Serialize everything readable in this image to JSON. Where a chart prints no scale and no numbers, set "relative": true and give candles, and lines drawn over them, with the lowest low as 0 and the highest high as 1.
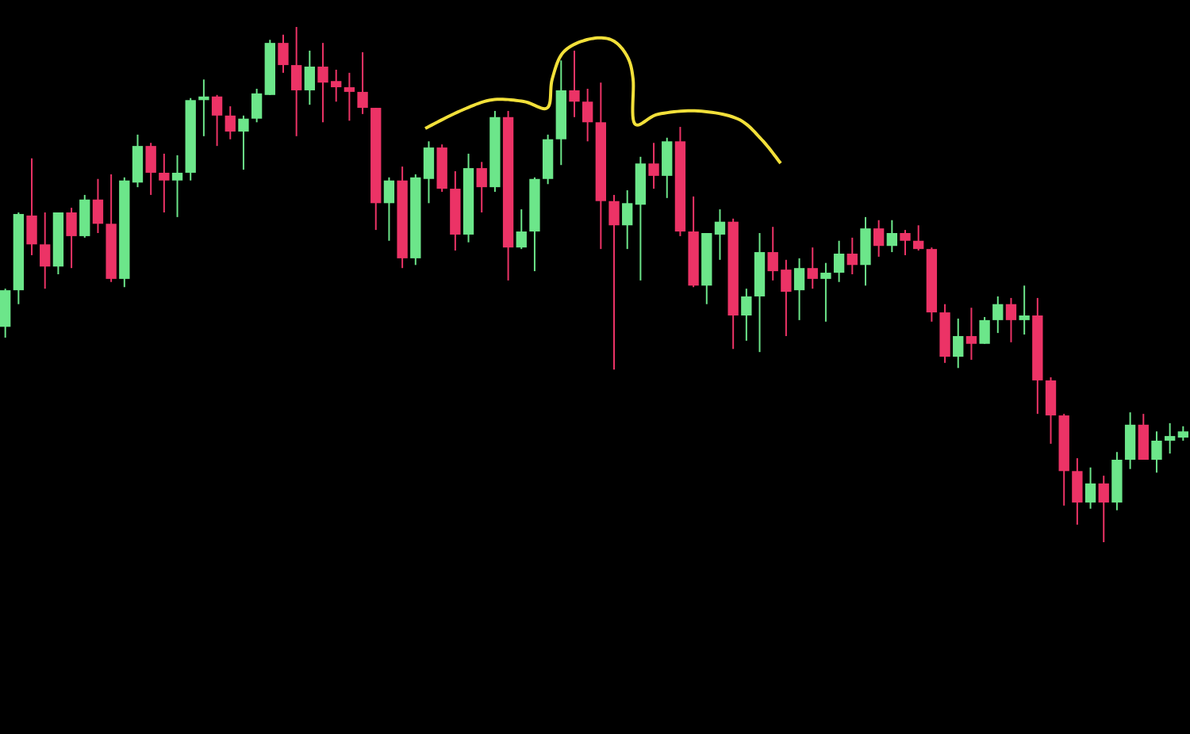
{
  "chart_data": {
    "type": "candlestick",
    "relative": true,
    "colors": [
      "#6ce68a",
      "#6ce68a",
      "#ec3366",
      "#ec3366",
      "#6ce68a",
      "#ec3366",
      "#6ce68a",
      "#ec3366",
      "#ec3366",
      "#6ce68a",
      "#6ce68a",
      "#ec3366",
      "#ec3366",
      "#6ce68a",
      "#6ce68a",
      "#6ce68a",
      "#ec3366",
      "#ec3366",
      "#6ce68a",
      "#6ce68a",
      "#6ce68a",
      "#ec3366",
      "#ec3366",
      "#6ce68a",
      "#ec3366",
      "#ec3366",
      "#ec3366",
      "#ec3366",
      "#ec3366",
      "#6ce68a",
      "#ec3366",
      "#6ce68a",
      "#6ce68a",
      "#ec3366",
      "#ec3366",
      "#6ce68a",
      "#ec3366",
      "#6ce68a",
      "#ec3366",
      "#6ce68a",
      "#6ce68a",
      "#6ce68a",
      "#6ce68a",
      "#ec3366",
      "#ec3366",
      "#ec3366",
      "#ec3366",
      "#6ce68a",
      "#6ce68a",
      "#ec3366",
      "#6ce68a",
      "#ec3366",
      "#ec3366",
      "#6ce68a",
      "#6ce68a",
      "#ec3366",
      "#6ce68a",
      "#6ce68a",
      "#ec3366",
      "#ec3366",
      "#6ce68a",
      "#ec3366",
      "#6ce68a",
      "#6ce68a",
      "#ec3366",
      "#6ce68a",
      "#ec3366",
      "#6ce68a",
      "#ec3366",
      "#ec3366",
      "#ec3366",
      "#ec3366",
      "#6ce68a",
      "#ec3366",
      "#6ce68a",
      "#6ce68a",
      "#ec3366",
      "#6ce68a",
      "#ec3366",
      "#ec3366",
      "#ec3366",
      "#ec3366",
      "#6ce68a",
      "#ec3366",
      "#6ce68a",
      "#6ce68a",
      "#ec3366",
      "#6ce68a",
      "#6ce68a",
      "#6ce68a"
    ],
    "categories": [
      null,
      null,
      null,
      null,
      null,
      null,
      null,
      null,
      null,
      null,
      null,
      null,
      null,
      null,
      null,
      null,
      null,
      null,
      null,
      null,
      null,
      null,
      null,
      null,
      null,
      null,
      null,
      null,
      null,
      null,
      null,
      null,
      null,
      null,
      null,
      null,
      null,
      null,
      null,
      null,
      null,
      null,
      null,
      null,
      null,
      null,
      null,
      null,
      null,
      null,
      null,
      null,
      null,
      null,
      null,
      null,
      null,
      null,
      null,
      null,
      null,
      null,
      null,
      null,
      null,
      null,
      null,
      null,
      null,
      null,
      null,
      null,
      null,
      null,
      null,
      null,
      null,
      null,
      null,
      null,
      null,
      null,
      null,
      null,
      null,
      null,
      null,
      null,
      null,
      null
    ],
    "ohlc": [
      [
        0.418,
        0.492,
        0.397,
        0.489
      ],
      [
        0.489,
        0.64,
        0.462,
        0.637
      ],
      [
        0.634,
        0.745,
        0.557,
        0.578
      ],
      [
        0.578,
        0.64,
        0.492,
        0.535
      ],
      [
        0.535,
        0.64,
        0.52,
        0.64
      ],
      [
        0.64,
        0.649,
        0.532,
        0.594
      ],
      [
        0.594,
        0.674,
        0.591,
        0.665
      ],
      [
        0.665,
        0.705,
        0.6,
        0.618
      ],
      [
        0.618,
        0.714,
        0.505,
        0.511
      ],
      [
        0.511,
        0.708,
        0.495,
        0.702
      ],
      [
        0.698,
        0.791,
        0.689,
        0.769
      ],
      [
        0.769,
        0.775,
        0.674,
        0.717
      ],
      [
        0.717,
        0.754,
        0.64,
        0.702
      ],
      [
        0.702,
        0.751,
        0.631,
        0.717
      ],
      [
        0.717,
        0.862,
        0.702,
        0.858
      ],
      [
        0.858,
        0.898,
        0.788,
        0.865
      ],
      [
        0.865,
        0.868,
        0.769,
        0.828
      ],
      [
        0.828,
        0.846,
        0.782,
        0.797
      ],
      [
        0.797,
        0.828,
        0.723,
        0.822
      ],
      [
        0.822,
        0.88,
        0.815,
        0.871
      ],
      [
        0.868,
        0.975,
        0.868,
        0.969
      ],
      [
        0.969,
        0.985,
        0.911,
        0.926
      ],
      [
        0.926,
        1,
        0.788,
        0.877
      ],
      [
        0.877,
        0.954,
        0.849,
        0.923
      ],
      [
        0.923,
        0.969,
        0.815,
        0.892
      ],
      [
        0.895,
        0.917,
        0.855,
        0.883
      ],
      [
        0.883,
        0.911,
        0.818,
        0.874
      ],
      [
        0.874,
        0.951,
        0.831,
        0.843
      ],
      [
        0.843,
        0.843,
        0.606,
        0.658
      ],
      [
        0.658,
        0.708,
        0.585,
        0.702
      ],
      [
        0.702,
        0.729,
        0.532,
        0.551
      ],
      [
        0.551,
        0.714,
        0.538,
        0.708
      ],
      [
        0.705,
        0.778,
        0.658,
        0.766
      ],
      [
        0.766,
        0.772,
        0.68,
        0.686
      ],
      [
        0.686,
        0.72,
        0.566,
        0.597
      ],
      [
        0.597,
        0.754,
        0.582,
        0.726
      ],
      [
        0.726,
        0.738,
        0.64,
        0.689
      ],
      [
        0.689,
        0.837,
        0.68,
        0.825
      ],
      [
        0.825,
        0.837,
        0.508,
        0.572
      ],
      [
        0.572,
        0.646,
        0.569,
        0.603
      ],
      [
        0.603,
        0.708,
        0.526,
        0.705
      ],
      [
        0.705,
        0.791,
        0.695,
        0.782
      ],
      [
        0.782,
        0.935,
        0.732,
        0.877
      ],
      [
        0.877,
        0.954,
        0.825,
        0.855
      ],
      [
        0.855,
        0.88,
        0.778,
        0.815
      ],
      [
        0.815,
        0.892,
        0.569,
        0.662
      ],
      [
        0.662,
        0.674,
        0.335,
        0.615
      ],
      [
        0.615,
        0.683,
        0.569,
        0.658
      ],
      [
        0.655,
        0.748,
        0.508,
        0.735
      ],
      [
        0.735,
        0.775,
        0.686,
        0.711
      ],
      [
        0.711,
        0.785,
        0.668,
        0.778
      ],
      [
        0.778,
        0.806,
        0.594,
        0.603
      ],
      [
        0.603,
        0.671,
        0.495,
        0.498
      ],
      [
        0.498,
        0.6,
        0.462,
        0.6
      ],
      [
        0.597,
        0.646,
        0.548,
        0.622
      ],
      [
        0.622,
        0.628,
        0.375,
        0.44
      ],
      [
        0.44,
        0.492,
        0.391,
        0.477
      ],
      [
        0.477,
        0.6,
        0.369,
        0.563
      ],
      [
        0.563,
        0.612,
        0.508,
        0.526
      ],
      [
        0.529,
        0.548,
        0.4,
        0.486
      ],
      [
        0.489,
        0.551,
        0.431,
        0.532
      ],
      [
        0.532,
        0.572,
        0.492,
        0.511
      ],
      [
        0.511,
        0.542,
        0.428,
        0.523
      ],
      [
        0.523,
        0.585,
        0.505,
        0.56
      ],
      [
        0.56,
        0.591,
        0.52,
        0.538
      ],
      [
        0.538,
        0.631,
        0.498,
        0.609
      ],
      [
        0.609,
        0.625,
        0.554,
        0.575
      ],
      [
        0.575,
        0.625,
        0.563,
        0.6
      ],
      [
        0.6,
        0.606,
        0.557,
        0.585
      ],
      [
        0.585,
        0.615,
        0.566,
        0.569
      ],
      [
        0.569,
        0.572,
        0.428,
        0.446
      ],
      [
        0.446,
        0.462,
        0.348,
        0.36
      ],
      [
        0.36,
        0.434,
        0.338,
        0.4
      ],
      [
        0.4,
        0.455,
        0.354,
        0.385
      ],
      [
        0.385,
        0.437,
        0.385,
        0.431
      ],
      [
        0.431,
        0.477,
        0.406,
        0.462
      ],
      [
        0.462,
        0.474,
        0.388,
        0.431
      ],
      [
        0.431,
        0.498,
        0.403,
        0.44
      ],
      [
        0.44,
        0.474,
        0.249,
        0.314
      ],
      [
        0.314,
        0.32,
        0.191,
        0.246
      ],
      [
        0.246,
        0.249,
        0.071,
        0.138
      ],
      [
        0.138,
        0.163,
        0.034,
        0.077
      ],
      [
        0.077,
        0.145,
        0.065,
        0.114
      ],
      [
        0.114,
        0.129,
        0,
        0.077
      ],
      [
        0.077,
        0.175,
        0.062,
        0.16
      ],
      [
        0.16,
        0.252,
        0.142,
        0.228
      ],
      [
        0.228,
        0.249,
        0.16,
        0.16
      ],
      [
        0.16,
        0.215,
        0.135,
        0.197
      ],
      [
        0.197,
        0.231,
        0.172,
        0.206
      ],
      [
        0.203,
        0.225,
        0.197,
        0.215
      ]
    ]
  }
}
